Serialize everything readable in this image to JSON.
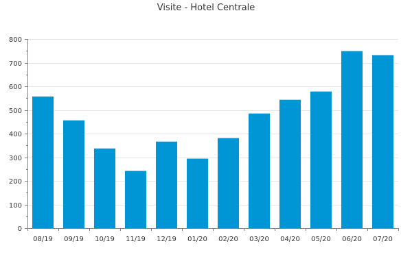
{
  "chart_data": {
    "type": "bar",
    "title": "Visite - Hotel Centrale",
    "xlabel": "",
    "ylabel": "",
    "categories": [
      "08/19",
      "09/19",
      "10/19",
      "11/19",
      "12/19",
      "01/20",
      "02/20",
      "03/20",
      "04/20",
      "05/20",
      "06/20",
      "07/20"
    ],
    "values": [
      557,
      456,
      337,
      242,
      366,
      294,
      381,
      485,
      543,
      578,
      749,
      732
    ],
    "ylim": [
      0,
      800
    ],
    "yticks": [
      0,
      100,
      200,
      300,
      400,
      500,
      600,
      700,
      800
    ],
    "grid": true,
    "legend": "none",
    "colors": {
      "bar": "#0096d6",
      "grid": "#e6e6e6",
      "axis": "#7f7f7f"
    }
  }
}
